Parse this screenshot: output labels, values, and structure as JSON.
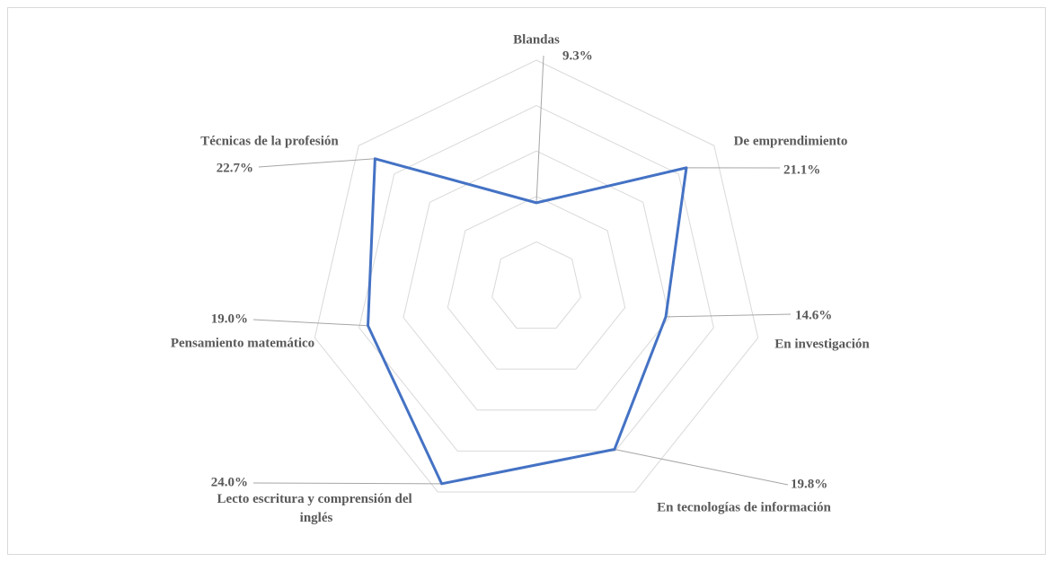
{
  "chart_data": {
    "type": "radar",
    "categories": [
      "Blandas",
      "De emprendimiento",
      "En investigación",
      "En tecnologías de información",
      "Lecto escritura y comprensión del inglés",
      "Pensamiento matemático",
      "Técnicas de la profesión"
    ],
    "series": [
      {
        "color": "#4472c4",
        "values": [
          9.3,
          21.1,
          14.6,
          19.8,
          24.0,
          19.0,
          22.7
        ],
        "value_labels": [
          "9.3%",
          "21.1%",
          "14.6%",
          "19.8%",
          "24.0%",
          "19.0%",
          "22.7%"
        ]
      }
    ],
    "ylim": [
      0,
      25
    ],
    "yticks": [
      0,
      5,
      10,
      15,
      20,
      25
    ],
    "grid": true
  }
}
